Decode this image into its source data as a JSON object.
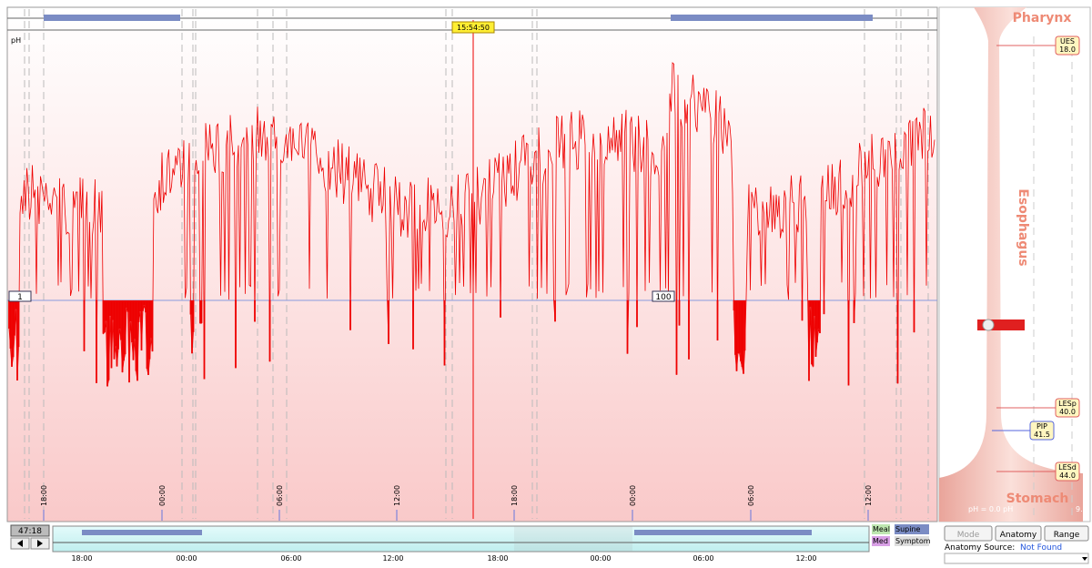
{
  "main_chart": {
    "axis_label": "pH",
    "cursor_time": "15:54:50",
    "threshold_left": "1",
    "threshold_mid": "100",
    "time_labels": [
      "18:00",
      "00:00",
      "06:00",
      "12:00",
      "18:00",
      "00:00",
      "06:00",
      "12:00"
    ]
  },
  "anatomy": {
    "pharynx": "Pharynx",
    "esophagus": "Esophagus",
    "stomach": "Stomach",
    "markers": [
      {
        "label": "UES",
        "value": "18.0"
      },
      {
        "label": "LESp",
        "value": "40.0"
      },
      {
        "label": "PIP",
        "value": "41.5"
      },
      {
        "label": "LESd",
        "value": "44.0"
      }
    ],
    "ph_readout": "pH = 0.0 pH",
    "scale_max": "9.0"
  },
  "overview": {
    "duration": "47:18",
    "legend": [
      "Meal",
      "Supine",
      "Med",
      "Symptom"
    ],
    "time_labels": [
      "18:00",
      "00:00",
      "06:00",
      "12:00",
      "18:00",
      "00:00",
      "06:00",
      "12:00"
    ]
  },
  "controls": {
    "buttons": [
      "Mode",
      "Anatomy",
      "Range"
    ],
    "source_label": "Anatomy Source:",
    "source_value": "Not Found"
  }
}
